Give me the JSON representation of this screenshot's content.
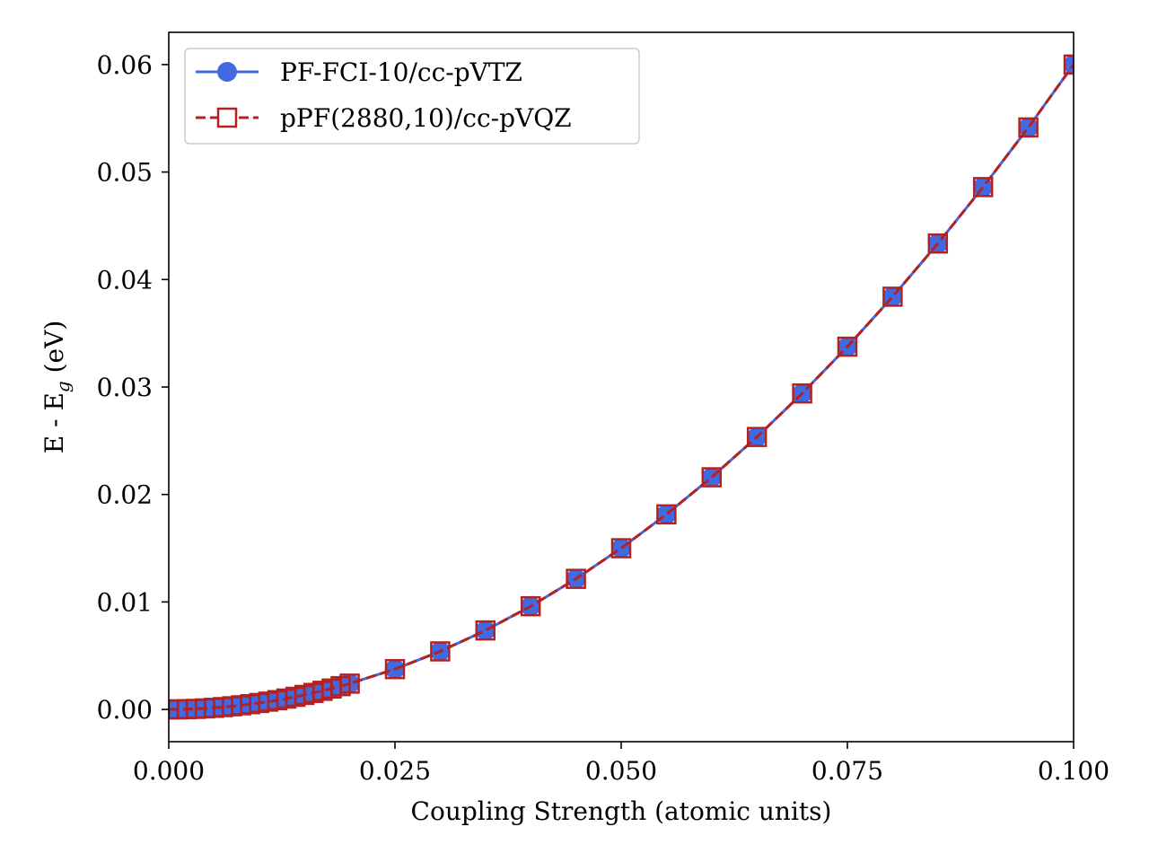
{
  "chart_data": {
    "type": "line",
    "xlabel": "Coupling Strength (atomic units)",
    "ylabel": "E - E",
    "ylabel_sub": "g",
    "ylabel_suffix": " (eV)",
    "xlim": [
      0.0,
      0.1
    ],
    "ylim": [
      -0.003,
      0.063
    ],
    "xticks": [
      0.0,
      0.025,
      0.05,
      0.075,
      0.1
    ],
    "xtick_labels": [
      "0.000",
      "0.025",
      "0.050",
      "0.075",
      "0.100"
    ],
    "yticks": [
      0.0,
      0.01,
      0.02,
      0.03,
      0.04,
      0.05,
      0.06
    ],
    "ytick_labels": [
      "0.00",
      "0.01",
      "0.02",
      "0.03",
      "0.04",
      "0.05",
      "0.06"
    ],
    "grid": false,
    "legend_position": "top-left",
    "x": [
      0.0,
      0.001,
      0.002,
      0.003,
      0.004,
      0.005,
      0.006,
      0.007,
      0.008,
      0.009,
      0.01,
      0.011,
      0.012,
      0.013,
      0.014,
      0.015,
      0.016,
      0.017,
      0.018,
      0.019,
      0.02,
      0.025,
      0.03,
      0.035,
      0.04,
      0.045,
      0.05,
      0.055,
      0.06,
      0.065,
      0.07,
      0.075,
      0.08,
      0.085,
      0.09,
      0.095,
      0.1
    ],
    "series": [
      {
        "name": "PF-FCI-10/cc-pVTZ",
        "color": "#4169e1",
        "line_style": "solid",
        "marker": "circle",
        "values": [
          0.0,
          6e-06,
          2.4e-05,
          5.4e-05,
          9.6e-05,
          0.00015,
          0.000216,
          0.000294,
          0.000384,
          0.000486,
          0.0006,
          0.000726,
          0.000864,
          0.001014,
          0.001176,
          0.00135,
          0.001536,
          0.001734,
          0.001944,
          0.002166,
          0.0024,
          0.00375,
          0.0054,
          0.00735,
          0.0096,
          0.01215,
          0.015,
          0.01815,
          0.0216,
          0.02535,
          0.0294,
          0.03375,
          0.0384,
          0.04335,
          0.0486,
          0.05415,
          0.06
        ]
      },
      {
        "name": "pPF(2880,10)/cc-pVQZ",
        "color": "#b22222",
        "line_style": "dashed",
        "marker": "square-open",
        "values": [
          0.0,
          6e-06,
          2.4e-05,
          5.4e-05,
          9.6e-05,
          0.00015,
          0.000216,
          0.000294,
          0.000384,
          0.000486,
          0.0006,
          0.000726,
          0.000864,
          0.001014,
          0.001176,
          0.00135,
          0.001536,
          0.001734,
          0.001944,
          0.002166,
          0.0024,
          0.00375,
          0.0054,
          0.00735,
          0.0096,
          0.01215,
          0.015,
          0.01815,
          0.0216,
          0.02535,
          0.0294,
          0.03375,
          0.0384,
          0.04335,
          0.0486,
          0.05415,
          0.06
        ]
      }
    ]
  }
}
